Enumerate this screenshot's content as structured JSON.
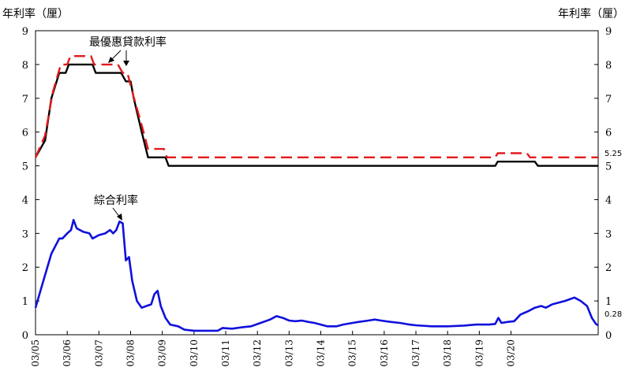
{
  "chart_data": {
    "type": "line",
    "left_unit": "年利率（厘）",
    "right_unit": "年利率（厘）",
    "ylim": [
      0,
      9
    ],
    "y_ticks": [
      "0",
      "1",
      "2",
      "3",
      "4",
      "5",
      "6",
      "7",
      "8",
      "9"
    ],
    "x_range": [
      2003.0,
      2020.75
    ],
    "x_ticks": [
      "03/05",
      "03/06",
      "03/07",
      "03/08",
      "03/09",
      "03/10",
      "03/11",
      "03/12",
      "03/13",
      "03/14",
      "03/15",
      "03/16",
      "03/17",
      "03/18",
      "03/19",
      "03/20"
    ],
    "grid": false,
    "colors": {
      "black": "#000000",
      "red": "#e31a1c",
      "blue": "#1010dd"
    },
    "series": [
      {
        "key": "prime_black",
        "color": "#000000",
        "dash": "solid",
        "points": [
          [
            2003.0,
            5.25
          ],
          [
            2003.3,
            5.75
          ],
          [
            2003.5,
            7.0
          ],
          [
            2003.75,
            7.75
          ],
          [
            2003.95,
            7.75
          ],
          [
            2004.05,
            8.0
          ],
          [
            2004.8,
            8.0
          ],
          [
            2004.9,
            7.75
          ],
          [
            2005.7,
            7.75
          ],
          [
            2005.85,
            7.5
          ],
          [
            2006.0,
            7.5
          ],
          [
            2006.1,
            7.0
          ],
          [
            2006.35,
            6.0
          ],
          [
            2006.55,
            5.25
          ],
          [
            2007.1,
            5.25
          ],
          [
            2007.2,
            5.0
          ],
          [
            2017.5,
            5.0
          ],
          [
            2017.58,
            5.125
          ],
          [
            2018.75,
            5.125
          ],
          [
            2018.85,
            5.0
          ],
          [
            2020.75,
            5.0
          ]
        ]
      },
      {
        "key": "prime_red",
        "color": "#e31a1c",
        "dash": "dashed",
        "points": [
          [
            2003.0,
            5.25
          ],
          [
            2003.3,
            5.9
          ],
          [
            2003.55,
            7.2
          ],
          [
            2003.8,
            8.0
          ],
          [
            2004.0,
            8.0
          ],
          [
            2004.1,
            8.25
          ],
          [
            2004.75,
            8.25
          ],
          [
            2004.85,
            8.0
          ],
          [
            2005.6,
            8.0
          ],
          [
            2005.75,
            7.75
          ],
          [
            2005.9,
            7.75
          ],
          [
            2006.05,
            7.2
          ],
          [
            2006.35,
            6.2
          ],
          [
            2006.55,
            5.5
          ],
          [
            2007.05,
            5.5
          ],
          [
            2007.15,
            5.25
          ],
          [
            2017.5,
            5.25
          ],
          [
            2017.58,
            5.375
          ],
          [
            2018.5,
            5.375
          ],
          [
            2018.6,
            5.25
          ],
          [
            2020.75,
            5.25
          ]
        ]
      },
      {
        "key": "composite",
        "color": "#1010dd",
        "dash": "solid",
        "points": [
          [
            2003.0,
            0.8
          ],
          [
            2003.25,
            1.6
          ],
          [
            2003.5,
            2.4
          ],
          [
            2003.75,
            2.85
          ],
          [
            2003.85,
            2.85
          ],
          [
            2004.0,
            3.0
          ],
          [
            2004.12,
            3.1
          ],
          [
            2004.2,
            3.4
          ],
          [
            2004.3,
            3.15
          ],
          [
            2004.5,
            3.05
          ],
          [
            2004.7,
            3.0
          ],
          [
            2004.8,
            2.85
          ],
          [
            2005.0,
            2.95
          ],
          [
            2005.2,
            3.0
          ],
          [
            2005.35,
            3.1
          ],
          [
            2005.45,
            3.0
          ],
          [
            2005.55,
            3.1
          ],
          [
            2005.65,
            3.35
          ],
          [
            2005.75,
            3.3
          ],
          [
            2005.85,
            2.2
          ],
          [
            2005.95,
            2.3
          ],
          [
            2006.05,
            1.6
          ],
          [
            2006.2,
            1.0
          ],
          [
            2006.35,
            0.8
          ],
          [
            2006.5,
            0.85
          ],
          [
            2006.65,
            0.9
          ],
          [
            2006.75,
            1.2
          ],
          [
            2006.85,
            1.3
          ],
          [
            2006.95,
            0.85
          ],
          [
            2007.1,
            0.5
          ],
          [
            2007.25,
            0.3
          ],
          [
            2007.5,
            0.25
          ],
          [
            2007.7,
            0.15
          ],
          [
            2008.0,
            0.12
          ],
          [
            2008.5,
            0.12
          ],
          [
            2008.75,
            0.12
          ],
          [
            2008.9,
            0.2
          ],
          [
            2009.2,
            0.18
          ],
          [
            2009.5,
            0.22
          ],
          [
            2009.8,
            0.25
          ],
          [
            2010.1,
            0.35
          ],
          [
            2010.4,
            0.45
          ],
          [
            2010.6,
            0.55
          ],
          [
            2010.8,
            0.5
          ],
          [
            2011.0,
            0.42
          ],
          [
            2011.2,
            0.4
          ],
          [
            2011.4,
            0.42
          ],
          [
            2011.6,
            0.38
          ],
          [
            2011.8,
            0.35
          ],
          [
            2012.0,
            0.3
          ],
          [
            2012.2,
            0.25
          ],
          [
            2012.5,
            0.25
          ],
          [
            2012.7,
            0.3
          ],
          [
            2013.0,
            0.35
          ],
          [
            2013.2,
            0.38
          ],
          [
            2013.5,
            0.42
          ],
          [
            2013.7,
            0.45
          ],
          [
            2013.9,
            0.42
          ],
          [
            2014.2,
            0.38
          ],
          [
            2014.5,
            0.35
          ],
          [
            2014.8,
            0.3
          ],
          [
            2015.0,
            0.28
          ],
          [
            2015.5,
            0.25
          ],
          [
            2016.0,
            0.25
          ],
          [
            2016.5,
            0.27
          ],
          [
            2016.9,
            0.3
          ],
          [
            2017.3,
            0.3
          ],
          [
            2017.5,
            0.32
          ],
          [
            2017.6,
            0.5
          ],
          [
            2017.7,
            0.35
          ],
          [
            2017.9,
            0.38
          ],
          [
            2018.1,
            0.4
          ],
          [
            2018.3,
            0.6
          ],
          [
            2018.55,
            0.7
          ],
          [
            2018.75,
            0.8
          ],
          [
            2018.95,
            0.85
          ],
          [
            2019.1,
            0.8
          ],
          [
            2019.3,
            0.9
          ],
          [
            2019.5,
            0.95
          ],
          [
            2019.7,
            1.0
          ],
          [
            2019.85,
            1.05
          ],
          [
            2020.0,
            1.1
          ],
          [
            2020.2,
            1.0
          ],
          [
            2020.4,
            0.85
          ],
          [
            2020.55,
            0.5
          ],
          [
            2020.68,
            0.32
          ],
          [
            2020.75,
            0.28
          ]
        ]
      }
    ],
    "annotations": [
      {
        "key": "prime_label",
        "text": "最優惠貸款利率"
      },
      {
        "key": "composite_label",
        "text": "綜合利率"
      }
    ],
    "end_labels": [
      {
        "key": "end_red",
        "text": "5.25",
        "value": 5.25
      },
      {
        "key": "end_blue",
        "text": "0.28",
        "value": 0.28
      }
    ]
  }
}
